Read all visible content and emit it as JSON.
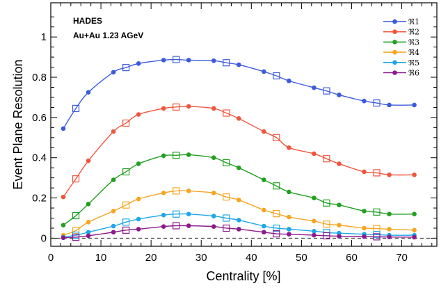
{
  "chart_data": {
    "type": "line",
    "xlabel": "Centrality [%]",
    "ylabel": "Event Plane Resolution",
    "xlim": [
      0,
      77
    ],
    "ylim": [
      -0.04,
      1.17
    ],
    "x_ticks": [
      "0",
      "10",
      "20",
      "30",
      "40",
      "50",
      "60",
      "70"
    ],
    "y_ticks": [
      "0",
      "0.2",
      "0.4",
      "0.6",
      "0.8",
      "1"
    ],
    "annotations": [
      "HADES",
      "Au+Au 1.23 AGeV"
    ],
    "legend_position": "top-right",
    "zero_line": true,
    "circle_x": [
      2.5,
      7.5,
      12.5,
      17.5,
      22.5,
      27.5,
      32.5,
      37.5,
      42.5,
      47.5,
      52.5,
      57.5,
      62.5,
      67.5,
      72.5
    ],
    "square_x": [
      5,
      15,
      25,
      35,
      45,
      55,
      65
    ],
    "series": [
      {
        "name": "ℜ1",
        "color": "#3b5bdb",
        "circles": [
          0.545,
          0.725,
          0.825,
          0.868,
          0.885,
          0.885,
          0.882,
          0.862,
          0.828,
          0.782,
          0.748,
          0.712,
          0.682,
          0.662,
          0.662
        ],
        "squares": [
          0.645,
          0.848,
          0.888,
          0.872,
          0.807,
          0.732,
          0.672
        ]
      },
      {
        "name": "ℜ2",
        "color": "#f0553d",
        "circles": [
          0.205,
          0.385,
          0.53,
          0.615,
          0.645,
          0.655,
          0.645,
          0.595,
          0.53,
          0.45,
          0.42,
          0.37,
          0.33,
          0.315,
          0.315
        ],
        "squares": [
          0.295,
          0.572,
          0.652,
          0.622,
          0.5,
          0.395,
          0.325
        ]
      },
      {
        "name": "ℜ3",
        "color": "#21a021",
        "circles": [
          0.065,
          0.17,
          0.29,
          0.37,
          0.41,
          0.415,
          0.4,
          0.35,
          0.29,
          0.23,
          0.2,
          0.165,
          0.135,
          0.12,
          0.12
        ],
        "squares": [
          0.112,
          0.33,
          0.412,
          0.375,
          0.26,
          0.175,
          0.13
        ]
      },
      {
        "name": "ℜ4",
        "color": "#f5a623",
        "circles": [
          0.015,
          0.08,
          0.135,
          0.195,
          0.225,
          0.235,
          0.225,
          0.19,
          0.14,
          0.105,
          0.085,
          0.065,
          0.05,
          0.045,
          0.04
        ],
        "squares": [
          0.038,
          0.165,
          0.235,
          0.205,
          0.122,
          0.07,
          0.048
        ]
      },
      {
        "name": "ℜ5",
        "color": "#1ea7e8",
        "circles": [
          0.005,
          0.03,
          0.06,
          0.095,
          0.115,
          0.12,
          0.11,
          0.09,
          0.06,
          0.045,
          0.035,
          0.025,
          0.02,
          0.015,
          0.015
        ],
        "squares": [
          0.015,
          0.08,
          0.12,
          0.1,
          0.05,
          0.028,
          0.018
        ]
      },
      {
        "name": "ℜ6",
        "color": "#8b1a8b",
        "circles": [
          0.002,
          0.012,
          0.03,
          0.045,
          0.058,
          0.062,
          0.058,
          0.045,
          0.03,
          0.02,
          0.015,
          0.01,
          0.008,
          0.006,
          0.005
        ],
        "squares": [
          0.005,
          0.04,
          0.062,
          0.05,
          0.022,
          0.012,
          0.007
        ]
      }
    ]
  }
}
